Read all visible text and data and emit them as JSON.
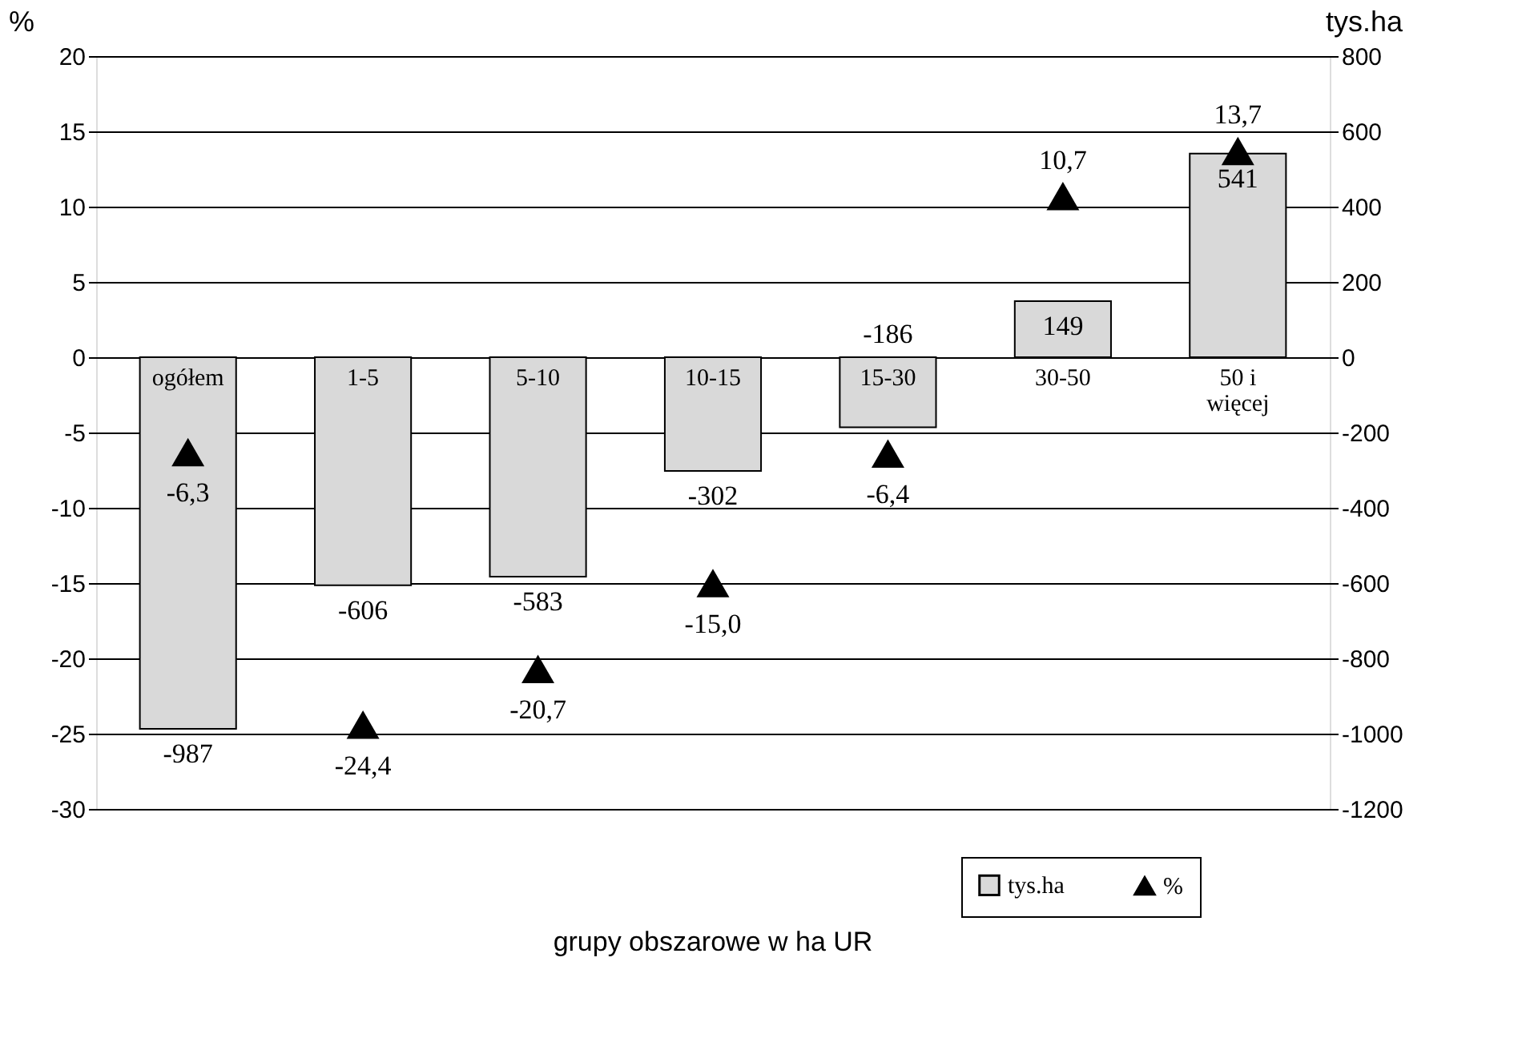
{
  "chart_data": {
    "type": "bar",
    "annotations": [
      "grupy obszarowe w ha UR"
    ],
    "ylabel": "%",
    "y2label": "tys.ha",
    "categories": [
      "ogółem",
      "1-5",
      "5-10",
      "10-15",
      "15-30",
      "30-50",
      "50 i więcej"
    ],
    "series": [
      {
        "name": "tys.ha",
        "axis": "y2",
        "color": "#d9d9d9",
        "values": [
          -987,
          -606,
          -583,
          -302,
          -186,
          149,
          541
        ],
        "value_labels": [
          "-987",
          "-606",
          "-583",
          "-302",
          "-186",
          "149",
          "541"
        ]
      },
      {
        "name": "%",
        "type": "scatter",
        "marker": "triangle",
        "color": "#000000",
        "values": [
          -6.3,
          -24.4,
          -20.7,
          -15.0,
          -6.4,
          10.7,
          13.7
        ],
        "value_labels": [
          "-6,3",
          "-24,4",
          "-20,7",
          "-15,0",
          "-6,4",
          "10,7",
          "13,7"
        ]
      }
    ],
    "ylim": [
      -30,
      20
    ],
    "yticks": [
      -30,
      -25,
      -20,
      -15,
      -10,
      -5,
      0,
      5,
      10,
      15,
      20
    ],
    "y2lim": [
      -1200,
      800
    ],
    "y2ticks": [
      -1200,
      -1000,
      -800,
      -600,
      -400,
      -200,
      0,
      200,
      400,
      600,
      800
    ],
    "grid": "y",
    "legend": "bottom right"
  }
}
